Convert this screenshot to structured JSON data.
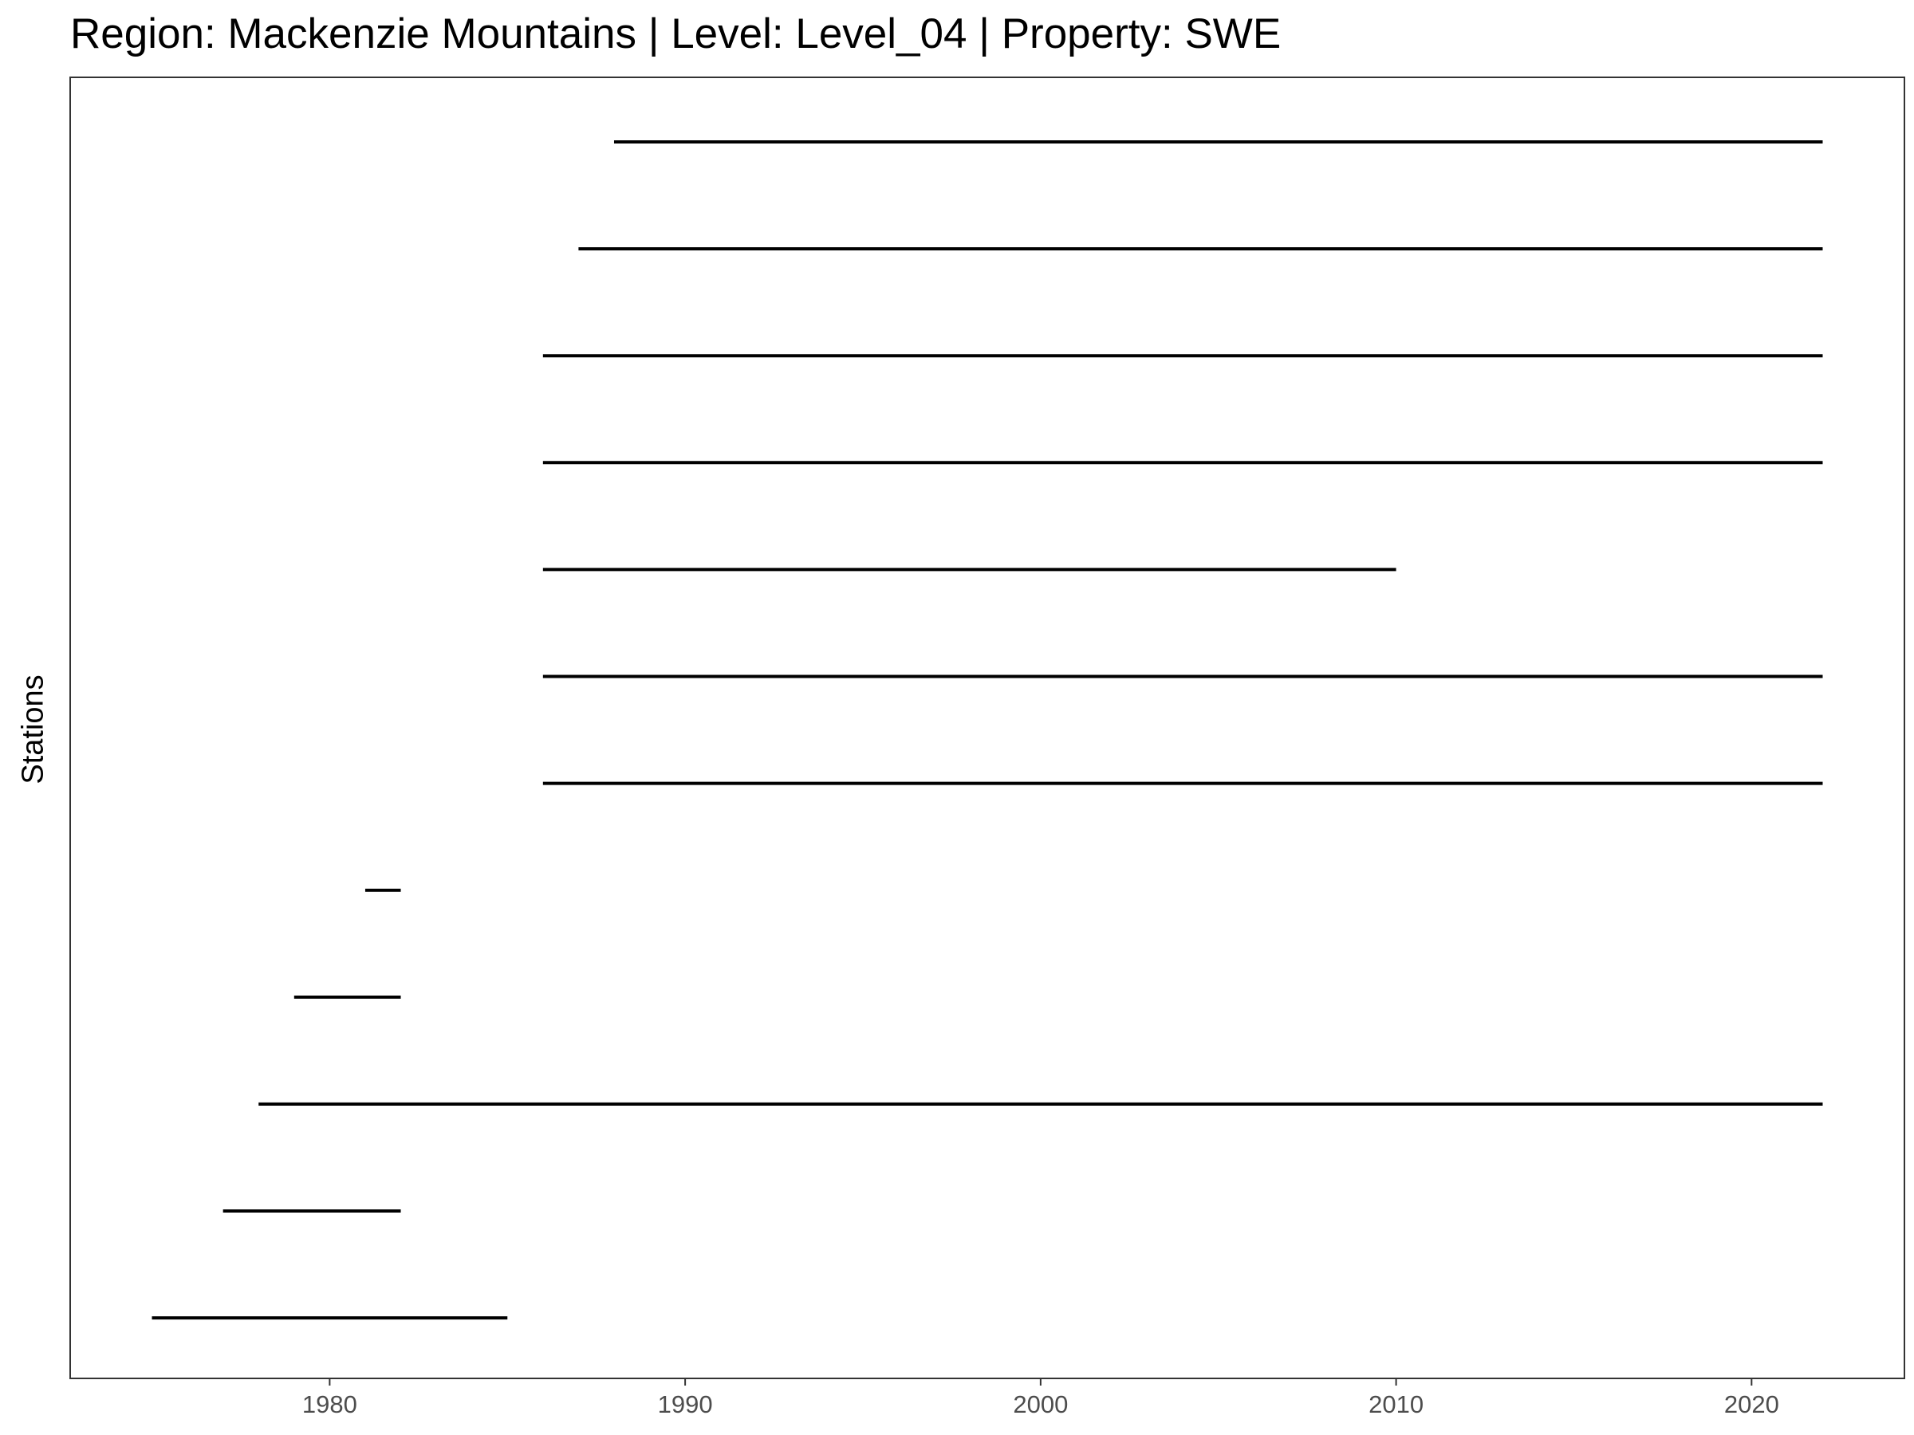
{
  "chart_data": {
    "type": "timeline",
    "title": "Region: Mackenzie Mountains | Level: Level_04 | Property: SWE",
    "xlabel": "",
    "ylabel": "Stations",
    "xlim": [
      1972.7,
      2024.3
    ],
    "x_ticks": [
      1980,
      1990,
      2000,
      2010,
      2020
    ],
    "grid": false,
    "segments": [
      {
        "start": 1988,
        "end": 2022
      },
      {
        "start": 1987,
        "end": 2022
      },
      {
        "start": 1986,
        "end": 2022
      },
      {
        "start": 1986,
        "end": 2022
      },
      {
        "start": 1986,
        "end": 2010
      },
      {
        "start": 1986,
        "end": 2022
      },
      {
        "start": 1986,
        "end": 2022
      },
      {
        "start": 1981,
        "end": 1982
      },
      {
        "start": 1979,
        "end": 1982
      },
      {
        "start": 1978,
        "end": 2022
      },
      {
        "start": 1977,
        "end": 1982
      },
      {
        "start": 1975,
        "end": 1985
      }
    ]
  }
}
